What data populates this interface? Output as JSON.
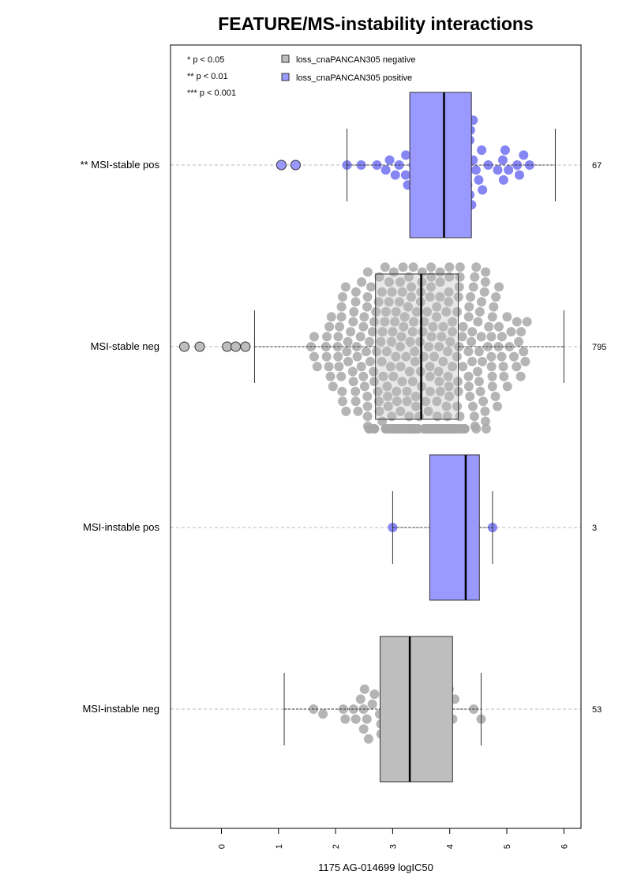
{
  "chart_data": {
    "type": "boxplot",
    "title": "FEATURE/MS-instability interactions",
    "xlabel": "1175 AG-014699 logIC50",
    "xlim": [
      -0.9,
      6.3
    ],
    "x_ticks": [
      "0",
      "1",
      "2",
      "3",
      "4",
      "5",
      "6"
    ],
    "orientation": "horizontal",
    "grid": "dashed horizontal guide per group",
    "significance_legend": [
      "* p < 0.05",
      "** p < 0.01",
      "*** p < 0.001"
    ],
    "legend": [
      {
        "label": "loss_cnaPANCAN305 negative",
        "color": "#bebebe"
      },
      {
        "label": "loss_cnaPANCAN305 positive",
        "color": "#9999ff"
      }
    ],
    "groups": [
      {
        "label": "** MSI-stable pos",
        "n": "67",
        "status": "positive",
        "whisker_low": 2.2,
        "q1": 3.3,
        "median": 3.9,
        "q3": 4.38,
        "whisker_high": 5.85,
        "outliers": [
          1.05,
          1.3
        ],
        "points_count": 67
      },
      {
        "label": "MSI-stable neg",
        "n": "795",
        "status": "negative",
        "whisker_low": 0.58,
        "q1": 2.7,
        "median": 3.5,
        "q3": 4.15,
        "whisker_high": 6.0,
        "outliers": [
          -0.65,
          -0.38,
          0.1,
          0.25,
          0.42
        ],
        "points_count": 795
      },
      {
        "label": "MSI-instable pos",
        "n": "3",
        "status": "positive",
        "whisker_low": 3.0,
        "q1": 3.65,
        "median": 4.28,
        "q3": 4.52,
        "whisker_high": 4.75,
        "outliers": [],
        "points": [
          3.0,
          4.28,
          4.75
        ]
      },
      {
        "label": "MSI-instable neg",
        "n": "53",
        "status": "negative",
        "whisker_low": 1.1,
        "q1": 2.78,
        "median": 3.3,
        "q3": 4.05,
        "whisker_high": 4.55,
        "outliers": [],
        "points_count": 53
      }
    ]
  },
  "colors": {
    "negative_fill": "#bebebe",
    "negative_point": "#a8a8a8",
    "positive_fill": "#9999ff",
    "positive_point": "#5c5cf0",
    "axis": "#000000",
    "guide": "#bbbbbb"
  }
}
